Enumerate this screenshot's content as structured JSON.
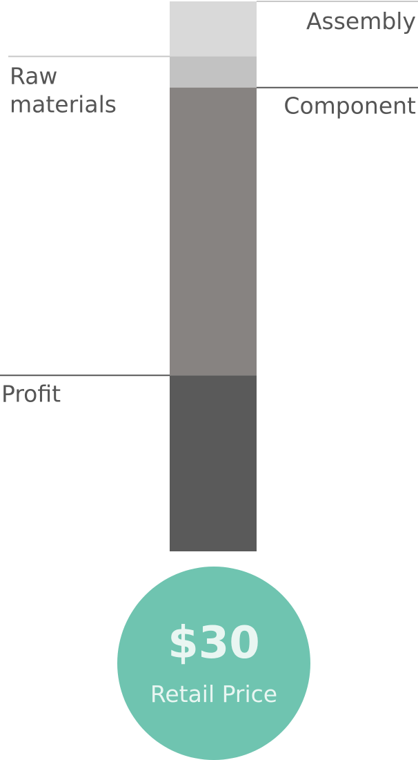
{
  "chart_data": {
    "type": "bar",
    "title": "",
    "xlabel": "",
    "ylabel": "",
    "stacked": true,
    "unit": "$",
    "total": 30,
    "segments": [
      {
        "name": "Assembly",
        "value": 3.0,
        "color": "#d9d9d9",
        "label_side": "right"
      },
      {
        "name": "Raw materials",
        "label_lines": [
          "Raw",
          "materials"
        ],
        "value": 1.7,
        "color": "#c2c2c2",
        "label_side": "left"
      },
      {
        "name": "Component",
        "value": 15.7,
        "color": "#878381",
        "label_side": "right"
      },
      {
        "name": "Profit",
        "value": 9.6,
        "color": "#5a5a5a",
        "label_side": "left"
      }
    ],
    "ylim": [
      0,
      30
    ]
  },
  "price_badge": {
    "value": "$30",
    "caption": "Retail Price",
    "background_color": "#6fc4b0",
    "text_color": "#e9f6f2"
  },
  "colors": {
    "label_text": "#555555",
    "leader_line": "#c8c8c8",
    "leader_line_dark": "#555555"
  }
}
